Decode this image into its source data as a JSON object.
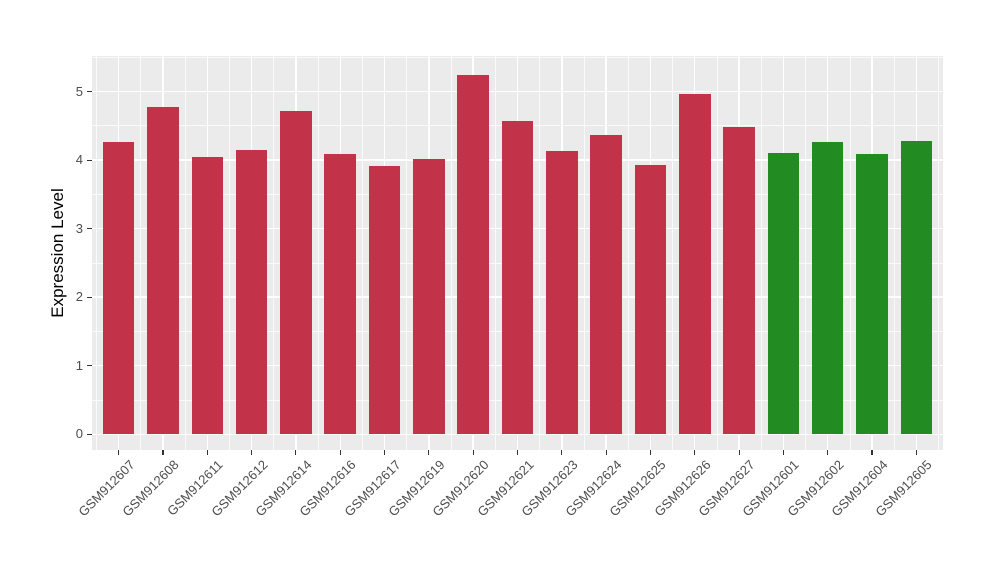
{
  "chart_data": {
    "type": "bar",
    "title": "",
    "xlabel": "",
    "ylabel": "Expression Level",
    "categories": [
      "GSM912607",
      "GSM912608",
      "GSM912611",
      "GSM912612",
      "GSM912614",
      "GSM912616",
      "GSM912617",
      "GSM912619",
      "GSM912620",
      "GSM912621",
      "GSM912623",
      "GSM912624",
      "GSM912625",
      "GSM912626",
      "GSM912627",
      "GSM912601",
      "GSM912602",
      "GSM912604",
      "GSM912605"
    ],
    "values": [
      4.27,
      4.77,
      4.04,
      4.15,
      4.72,
      4.09,
      3.91,
      4.02,
      5.25,
      4.57,
      4.13,
      4.36,
      3.93,
      4.97,
      4.49,
      4.11,
      4.27,
      4.09,
      4.28
    ],
    "bar_groups": [
      "red",
      "red",
      "red",
      "red",
      "red",
      "red",
      "red",
      "red",
      "red",
      "red",
      "red",
      "red",
      "red",
      "red",
      "red",
      "green",
      "green",
      "green",
      "green"
    ],
    "group_colors": {
      "red": "#C23249",
      "green": "#228C22"
    },
    "yticks": [
      0,
      1,
      2,
      3,
      4,
      5
    ],
    "ylim": [
      -0.23,
      5.52
    ],
    "grid": true,
    "legend": false,
    "panel_background": "#EBEBEB",
    "gridline_color": "#FFFFFF",
    "x_tick_rotation_deg": 45
  }
}
